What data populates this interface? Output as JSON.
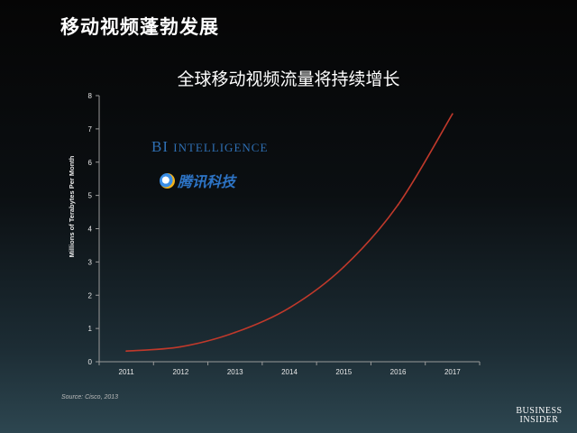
{
  "slide_title": "移动视频蓬勃发展",
  "watermarks": {
    "bi_main": "BI",
    "bi_rest": "Intelligence",
    "tencent": "腾讯科技",
    "tencent_icon": "tencent-logo-icon"
  },
  "source": "Source: Cisco, 2013",
  "logo": {
    "line1": "Business",
    "line2": "Insider"
  },
  "chart_data": {
    "type": "line",
    "title": "全球移动视频流量将持续增长",
    "xlabel": "",
    "ylabel": "Millions of Terabytes Per Month",
    "x": [
      "2011",
      "2012",
      "2013",
      "2014",
      "2015",
      "2016",
      "2017"
    ],
    "series": [
      {
        "values": [
          0.32,
          0.45,
          0.88,
          1.62,
          2.85,
          4.72,
          7.45
        ],
        "color": "#c0392b"
      }
    ],
    "ylim": [
      0,
      8
    ],
    "yticks": [
      0,
      1,
      2,
      3,
      4,
      5,
      6,
      7,
      8
    ],
    "grid": false,
    "legend": "none"
  }
}
